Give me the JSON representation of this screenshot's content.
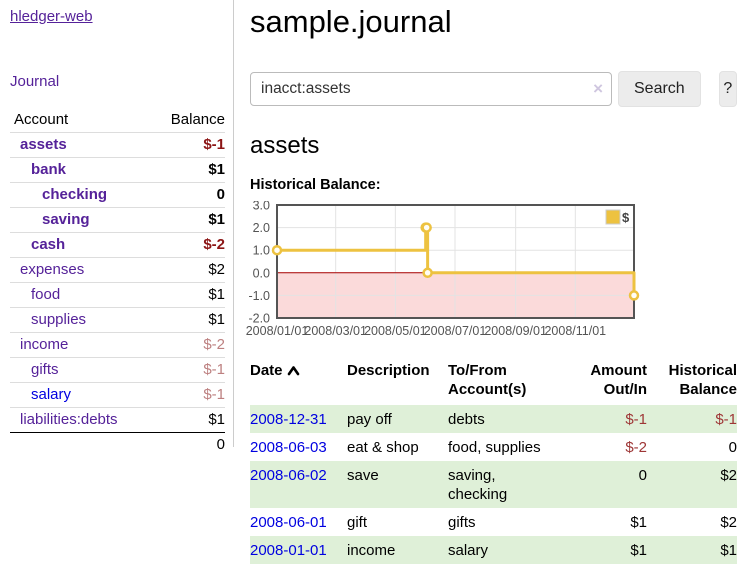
{
  "colors": {
    "link_purple": "#552299",
    "link_blue": "#0000e0",
    "negative_bold": "#8c1515",
    "negative_muted": "#bd8080",
    "negative_table": "#9e3636",
    "row_shade_green": "#dff0d8",
    "series_yellow": "#edc240",
    "chart_border": "#545454",
    "negative_region_pink": "#fbdada",
    "zero_line_red": "#aa0000"
  },
  "sidebar": {
    "app_title": "hledger-web",
    "nav_journal": "Journal",
    "accounts_table": {
      "headers": {
        "account": "Account",
        "balance": "Balance"
      },
      "rows": [
        {
          "name": "assets",
          "balance": "$-1"
        },
        {
          "name": "bank",
          "balance": "$1"
        },
        {
          "name": "checking",
          "balance": "0"
        },
        {
          "name": "saving",
          "balance": "$1"
        },
        {
          "name": "cash",
          "balance": "$-2"
        },
        {
          "name": "expenses",
          "balance": "$2"
        },
        {
          "name": "food",
          "balance": "$1"
        },
        {
          "name": "supplies",
          "balance": "$1"
        },
        {
          "name": "income",
          "balance": "$-2"
        },
        {
          "name": "gifts",
          "balance": "$-1"
        },
        {
          "name": "salary",
          "balance": "$-1"
        },
        {
          "name": "liabilities:debts",
          "balance": "$1"
        }
      ],
      "total": "0"
    }
  },
  "header": {
    "title": "sample.journal"
  },
  "search": {
    "value": "inacct:assets",
    "clear_icon": "×",
    "button_label": "Search",
    "help_label": "?"
  },
  "account_page": {
    "heading": "assets",
    "chart_label": "Historical Balance:"
  },
  "chart_data": {
    "type": "line",
    "step": true,
    "title": "Historical Balance",
    "legend": [
      {
        "label": "$",
        "color": "#edc240"
      }
    ],
    "legend_position": "top-right",
    "grid": true,
    "ylim": [
      -2,
      3
    ],
    "xlim": [
      "2008-01-01",
      "2008-12-31"
    ],
    "y_ticks": [
      "3.0",
      "2.0",
      "1.0",
      "0.0",
      "-1.0",
      "-2.0"
    ],
    "y_tick_values": [
      3,
      2,
      1,
      0,
      -1,
      -2
    ],
    "x_ticks": [
      {
        "label": "2008/01/01",
        "date": "2008-01-01"
      },
      {
        "label": "2008/03/01",
        "date": "2008-03-01"
      },
      {
        "label": "2008/05/01",
        "date": "2008-05-01"
      },
      {
        "label": "2008/07/01",
        "date": "2008-07-01"
      },
      {
        "label": "2008/09/01",
        "date": "2008-09-01"
      },
      {
        "label": "2008/11/01",
        "date": "2008-11-01"
      }
    ],
    "series": [
      {
        "name": "$",
        "color": "#edc240",
        "points": [
          {
            "date": "2008-01-01",
            "value": 1
          },
          {
            "date": "2008-06-01",
            "value": 2
          },
          {
            "date": "2008-06-02",
            "value": 2
          },
          {
            "date": "2008-06-03",
            "value": 0
          },
          {
            "date": "2008-12-31",
            "value": -1
          }
        ]
      }
    ],
    "negative_region_fill": "#fbdada",
    "zero_line_color": "#aa0000"
  },
  "register": {
    "headers": [
      "Date",
      "Description",
      "To/From Account(s)",
      "Amount Out/In",
      "Historical Balance"
    ],
    "rows": [
      {
        "date": "2008-12-31",
        "description": "pay off",
        "accounts": "debts",
        "amount": "$-1",
        "balance": "$-1"
      },
      {
        "date": "2008-06-03",
        "description": "eat & shop",
        "accounts": "food, supplies",
        "amount": "$-2",
        "balance": "0"
      },
      {
        "date": "2008-06-02",
        "description": "save",
        "accounts": "saving,\nchecking",
        "amount": "0",
        "balance": "$2"
      },
      {
        "date": "2008-06-01",
        "description": "gift",
        "accounts": "gifts",
        "amount": "$1",
        "balance": "$2"
      },
      {
        "date": "2008-01-01",
        "description": "income",
        "accounts": "salary",
        "amount": "$1",
        "balance": "$1"
      }
    ]
  }
}
